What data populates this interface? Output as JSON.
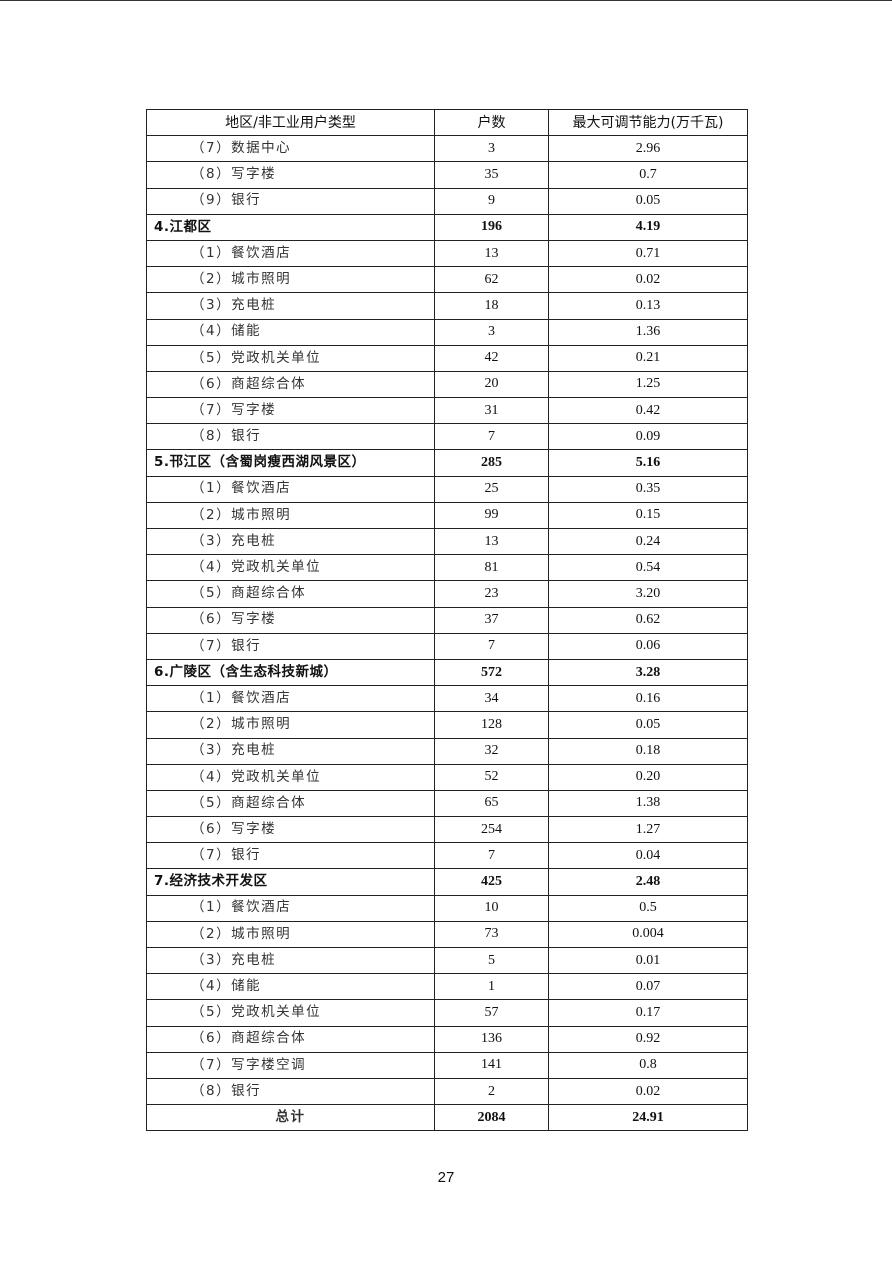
{
  "table": {
    "headers": [
      "地区/非工业用户类型",
      "户数",
      "最大可调节能力(万千瓦)"
    ],
    "rows": [
      {
        "type": "item",
        "name": "（7）数据中心",
        "count": "3",
        "capacity": "2.96"
      },
      {
        "type": "item",
        "name": "（8）写字楼",
        "count": "35",
        "capacity": "0.7"
      },
      {
        "type": "item",
        "name": "（9）银行",
        "count": "9",
        "capacity": "0.05"
      },
      {
        "type": "group",
        "name": "4.江都区",
        "count": "196",
        "capacity": "4.19"
      },
      {
        "type": "item",
        "name": "（1）餐饮酒店",
        "count": "13",
        "capacity": "0.71"
      },
      {
        "type": "item",
        "name": "（2）城市照明",
        "count": "62",
        "capacity": "0.02"
      },
      {
        "type": "item",
        "name": "（3）充电桩",
        "count": "18",
        "capacity": "0.13"
      },
      {
        "type": "item",
        "name": "（4）储能",
        "count": "3",
        "capacity": "1.36"
      },
      {
        "type": "item",
        "name": "（5）党政机关单位",
        "count": "42",
        "capacity": "0.21"
      },
      {
        "type": "item",
        "name": "（6）商超综合体",
        "count": "20",
        "capacity": "1.25"
      },
      {
        "type": "item",
        "name": "（7）写字楼",
        "count": "31",
        "capacity": "0.42"
      },
      {
        "type": "item",
        "name": "（8）银行",
        "count": "7",
        "capacity": "0.09"
      },
      {
        "type": "group",
        "name": "5.邗江区（含蜀岗瘦西湖风景区）",
        "count": "285",
        "capacity": "5.16"
      },
      {
        "type": "item",
        "name": "（1）餐饮酒店",
        "count": "25",
        "capacity": "0.35"
      },
      {
        "type": "item",
        "name": "（2）城市照明",
        "count": "99",
        "capacity": "0.15"
      },
      {
        "type": "item",
        "name": "（3）充电桩",
        "count": "13",
        "capacity": "0.24"
      },
      {
        "type": "item",
        "name": "（4）党政机关单位",
        "count": "81",
        "capacity": "0.54"
      },
      {
        "type": "item",
        "name": "（5）商超综合体",
        "count": "23",
        "capacity": "3.20"
      },
      {
        "type": "item",
        "name": "（6）写字楼",
        "count": "37",
        "capacity": "0.62"
      },
      {
        "type": "item",
        "name": "（7）银行",
        "count": "7",
        "capacity": "0.06"
      },
      {
        "type": "group",
        "name": "6.广陵区（含生态科技新城）",
        "count": "572",
        "capacity": "3.28"
      },
      {
        "type": "item",
        "name": "（1）餐饮酒店",
        "count": "34",
        "capacity": "0.16"
      },
      {
        "type": "item",
        "name": "（2）城市照明",
        "count": "128",
        "capacity": "0.05"
      },
      {
        "type": "item",
        "name": "（3）充电桩",
        "count": "32",
        "capacity": "0.18"
      },
      {
        "type": "item",
        "name": "（4）党政机关单位",
        "count": "52",
        "capacity": "0.20"
      },
      {
        "type": "item",
        "name": "（5）商超综合体",
        "count": "65",
        "capacity": "1.38"
      },
      {
        "type": "item",
        "name": "（6）写字楼",
        "count": "254",
        "capacity": "1.27"
      },
      {
        "type": "item",
        "name": "（7）银行",
        "count": "7",
        "capacity": "0.04"
      },
      {
        "type": "group",
        "name": "7.经济技术开发区",
        "count": "425",
        "capacity": "2.48"
      },
      {
        "type": "item",
        "name": "（1）餐饮酒店",
        "count": "10",
        "capacity": "0.5"
      },
      {
        "type": "item",
        "name": "（2）城市照明",
        "count": "73",
        "capacity": "0.004"
      },
      {
        "type": "item",
        "name": "（3）充电桩",
        "count": "5",
        "capacity": "0.01"
      },
      {
        "type": "item",
        "name": "（4）储能",
        "count": "1",
        "capacity": "0.07"
      },
      {
        "type": "item",
        "name": "（5）党政机关单位",
        "count": "57",
        "capacity": "0.17"
      },
      {
        "type": "item",
        "name": "（6）商超综合体",
        "count": "136",
        "capacity": "0.92"
      },
      {
        "type": "item",
        "name": "（7）写字楼空调",
        "count": "141",
        "capacity": "0.8"
      },
      {
        "type": "item",
        "name": "（8）银行",
        "count": "2",
        "capacity": "0.02"
      },
      {
        "type": "total",
        "name": "总计",
        "count": "2084",
        "capacity": "24.91"
      }
    ]
  },
  "page_number": "27"
}
